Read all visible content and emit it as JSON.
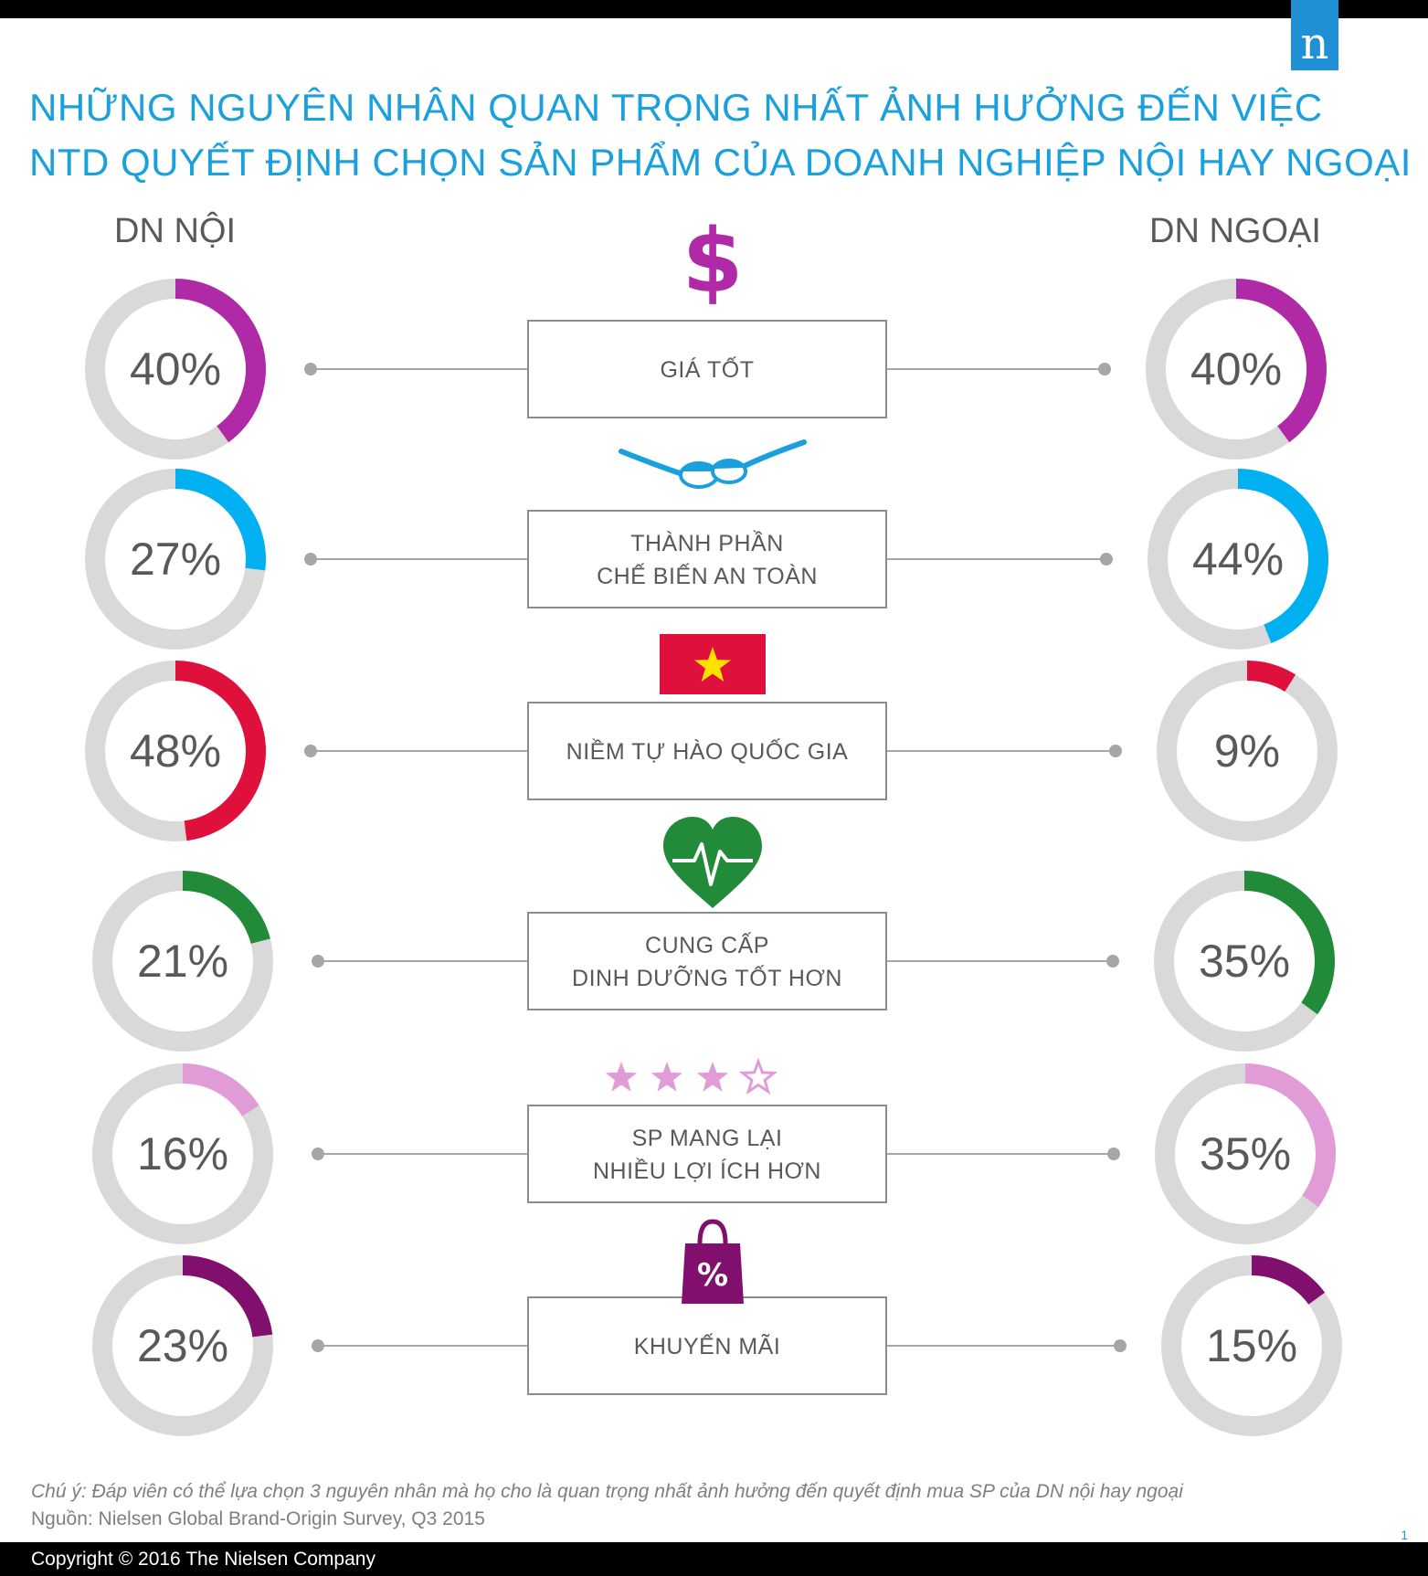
{
  "title": {
    "line1": "NHỮNG NGUYÊN NHÂN QUAN TRỌNG NHẤT ẢNH HƯỞNG ĐẾN VIỆC",
    "line2": "NTD QUYẾT ĐỊNH CHỌN SẢN PHẨM CỦA DOANH NGHIỆP NỘI HAY NGOẠI"
  },
  "logo": "n",
  "columns": {
    "left": "DN NỘI",
    "right": "DN NGOẠI"
  },
  "colors": {
    "track": "#d9d9d9",
    "connector": "#a6a6a6",
    "box_border": "#8c8c8c",
    "title": "#1aa0dc",
    "heading_text": "#595959"
  },
  "chart_data": {
    "type": "donut",
    "series": [
      {
        "name": "DN NỘI"
      },
      {
        "name": "DN NGOẠI"
      }
    ],
    "unit": "%",
    "categories": [
      {
        "label": [
          "GIÁ TỐT"
        ],
        "icon": "dollar-icon",
        "color": "#b02aa8",
        "domestic": 40,
        "foreign": 40,
        "domestic_label": "40%",
        "foreign_label": "40%"
      },
      {
        "label": [
          "THÀNH PHẦN",
          "CHẾ BIẾN AN TOÀN"
        ],
        "icon": "spoons-icon",
        "color": "#00b0f0",
        "domestic": 27,
        "foreign": 44,
        "domestic_label": "27%",
        "foreign_label": "44%"
      },
      {
        "label": [
          "NIỀM TỰ HÀO QUỐC GIA"
        ],
        "icon": "vietnam-flag-icon",
        "color": "#e0103c",
        "domestic": 48,
        "foreign": 9,
        "domestic_label": "48%",
        "foreign_label": "9%"
      },
      {
        "label": [
          "CUNG CẤP",
          "DINH DƯỠNG TỐT HƠN"
        ],
        "icon": "heart-pulse-icon",
        "color": "#228b3a",
        "domestic": 21,
        "foreign": 35,
        "domestic_label": "21%",
        "foreign_label": "35%"
      },
      {
        "label": [
          "SP MANG LẠI",
          "NHIỀU LỢI ÍCH HƠN"
        ],
        "icon": "stars-icon",
        "color": "#e19cd8",
        "domestic": 16,
        "foreign": 35,
        "domestic_label": "16%",
        "foreign_label": "35%"
      },
      {
        "label": [
          "KHUYẾN MÃI"
        ],
        "icon": "discount-bag-icon",
        "color": "#800f6e",
        "domestic": 23,
        "foreign": 15,
        "domestic_label": "23%",
        "foreign_label": "15%"
      }
    ]
  },
  "note": {
    "caption": "Chú ý: Đáp viên có thể lựa chọn 3 nguyên nhân mà họ cho là quan trọng nhất ảnh hưởng đến quyết định mua SP của DN nội hay ngoại",
    "source": "Nguồn: Nielsen Global Brand-Origin Survey, Q3 2015"
  },
  "page_number": "1",
  "footer": "Copyright © 2016 The Nielsen Company"
}
